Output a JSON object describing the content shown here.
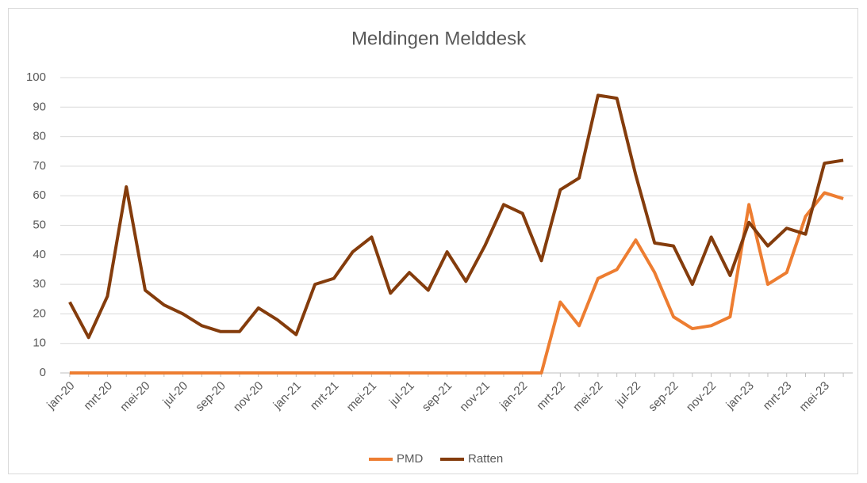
{
  "chart_data": {
    "type": "line",
    "title": "Meldingen Melddesk",
    "categories": [
      "jan-20",
      null,
      "mrt-20",
      null,
      "mei-20",
      null,
      "jul-20",
      null,
      "sep-20",
      null,
      "nov-20",
      null,
      "jan-21",
      null,
      "mrt-21",
      null,
      "mei-21",
      null,
      "jul-21",
      null,
      "sep-21",
      null,
      "nov-21",
      null,
      "jan-22",
      null,
      "mrt-22",
      null,
      "mei-22",
      null,
      "jul-22",
      null,
      "sep-22",
      null,
      "nov-22",
      null,
      "jan-23",
      null,
      "mrt-23",
      null,
      "mei-23",
      null
    ],
    "series": [
      {
        "name": "PMD",
        "color": "#ed7d31",
        "values": [
          0,
          0,
          0,
          0,
          0,
          0,
          0,
          0,
          0,
          0,
          0,
          0,
          0,
          0,
          0,
          0,
          0,
          0,
          0,
          0,
          0,
          0,
          0,
          0,
          0,
          0,
          24,
          16,
          32,
          35,
          45,
          34,
          19,
          15,
          16,
          19,
          57,
          30,
          34,
          53,
          61,
          59
        ]
      },
      {
        "name": "Ratten",
        "color": "#843c0c",
        "values": [
          24,
          12,
          26,
          63,
          28,
          23,
          20,
          16,
          14,
          14,
          22,
          18,
          13,
          30,
          32,
          41,
          46,
          27,
          34,
          28,
          41,
          31,
          43,
          57,
          54,
          38,
          62,
          66,
          94,
          93,
          67,
          44,
          43,
          30,
          46,
          33,
          51,
          43,
          49,
          47,
          71,
          72
        ]
      }
    ],
    "ylim": [
      0,
      100
    ],
    "yticks": [
      0,
      10,
      20,
      30,
      40,
      50,
      60,
      70,
      80,
      90,
      100
    ],
    "grid": true,
    "legend": "bottom"
  }
}
